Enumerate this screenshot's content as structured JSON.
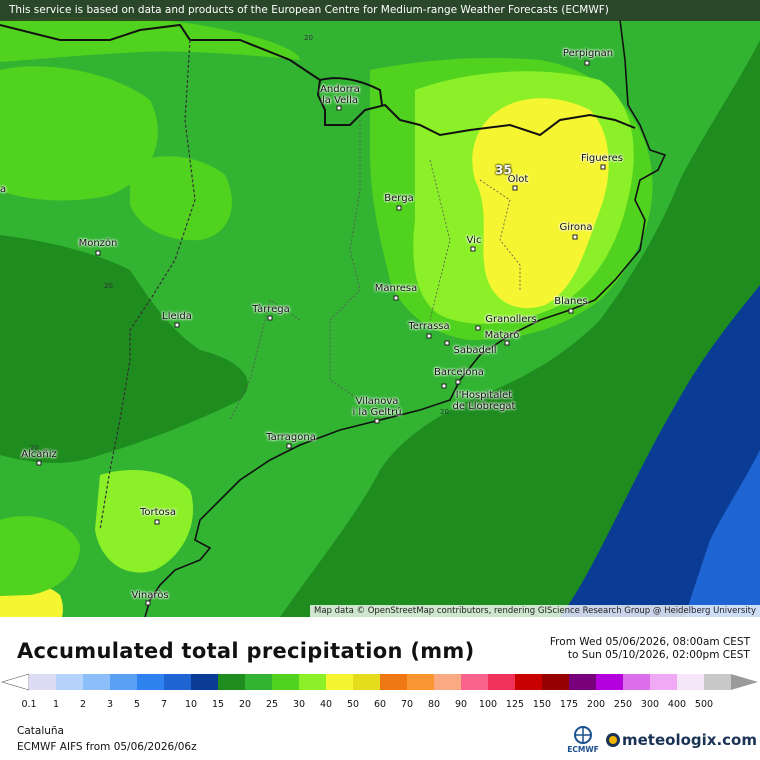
{
  "banner": "This service is based on data and products of the European Centre for Medium-range Weather Forecasts (ECMWF)",
  "attribution": "Map data © OpenStreetMap contributors, rendering GIScience Research Group @ Heidelberg University",
  "max_value": "35",
  "contour_label": "20",
  "cities": [
    {
      "name": "Perpignan"
    },
    {
      "name": "Andorra\nla Vella"
    },
    {
      "name": "Figueres"
    },
    {
      "name": "Olot"
    },
    {
      "name": "Berga"
    },
    {
      "name": "Girona"
    },
    {
      "name": "Vic"
    },
    {
      "name": "Monzón"
    },
    {
      "name": "Manresa"
    },
    {
      "name": "Blanes"
    },
    {
      "name": "Lleida"
    },
    {
      "name": "Tàrrega"
    },
    {
      "name": "Terrassa"
    },
    {
      "name": "Granollers"
    },
    {
      "name": "Mataró"
    },
    {
      "name": "Sabadell"
    },
    {
      "name": "Barcelona"
    },
    {
      "name": "l'Hospitalet\nde Llobregat"
    },
    {
      "name": "Vilanova\ni la Geltrú"
    },
    {
      "name": "Tarragona"
    },
    {
      "name": "Alcañiz"
    },
    {
      "name": "Tortosa"
    },
    {
      "name": "Vinaròs"
    },
    {
      "name": "a"
    }
  ],
  "legend": {
    "title": "Accumulated total precipitation (mm)",
    "period_from": "From Wed 05/06/2026, 08:00am CEST",
    "period_to": "to Sun 05/10/2026, 02:00pm CEST",
    "ticks": [
      "0.1",
      "1",
      "2",
      "3",
      "5",
      "7",
      "10",
      "15",
      "20",
      "25",
      "30",
      "40",
      "50",
      "60",
      "70",
      "80",
      "90",
      "100",
      "125",
      "150",
      "175",
      "200",
      "250",
      "300",
      "400",
      "500"
    ],
    "colors": [
      "#dcdcf5",
      "#b4d2fa",
      "#8cbefa",
      "#5aa0f5",
      "#2d82f0",
      "#1e64d2",
      "#0a3c96",
      "#1e8c1e",
      "#32b432",
      "#50d21e",
      "#8cf028",
      "#f5f532",
      "#e6dc1e",
      "#f07814",
      "#fa9632",
      "#faaa82",
      "#fa648c",
      "#f0325a",
      "#c80000",
      "#960000",
      "#78007a",
      "#b400dc",
      "#dc6eeb",
      "#f0aaf5",
      "#f5e6fa",
      "#c8c8c8"
    ]
  },
  "footer": {
    "region": "Cataluña",
    "model": "ECMWF AIFS from  05/06/2026/06z",
    "ecmwf_logo": "ECMWF",
    "brand": "meteologix.com",
    "brand_icon": "meteologix-sun-icon"
  }
}
